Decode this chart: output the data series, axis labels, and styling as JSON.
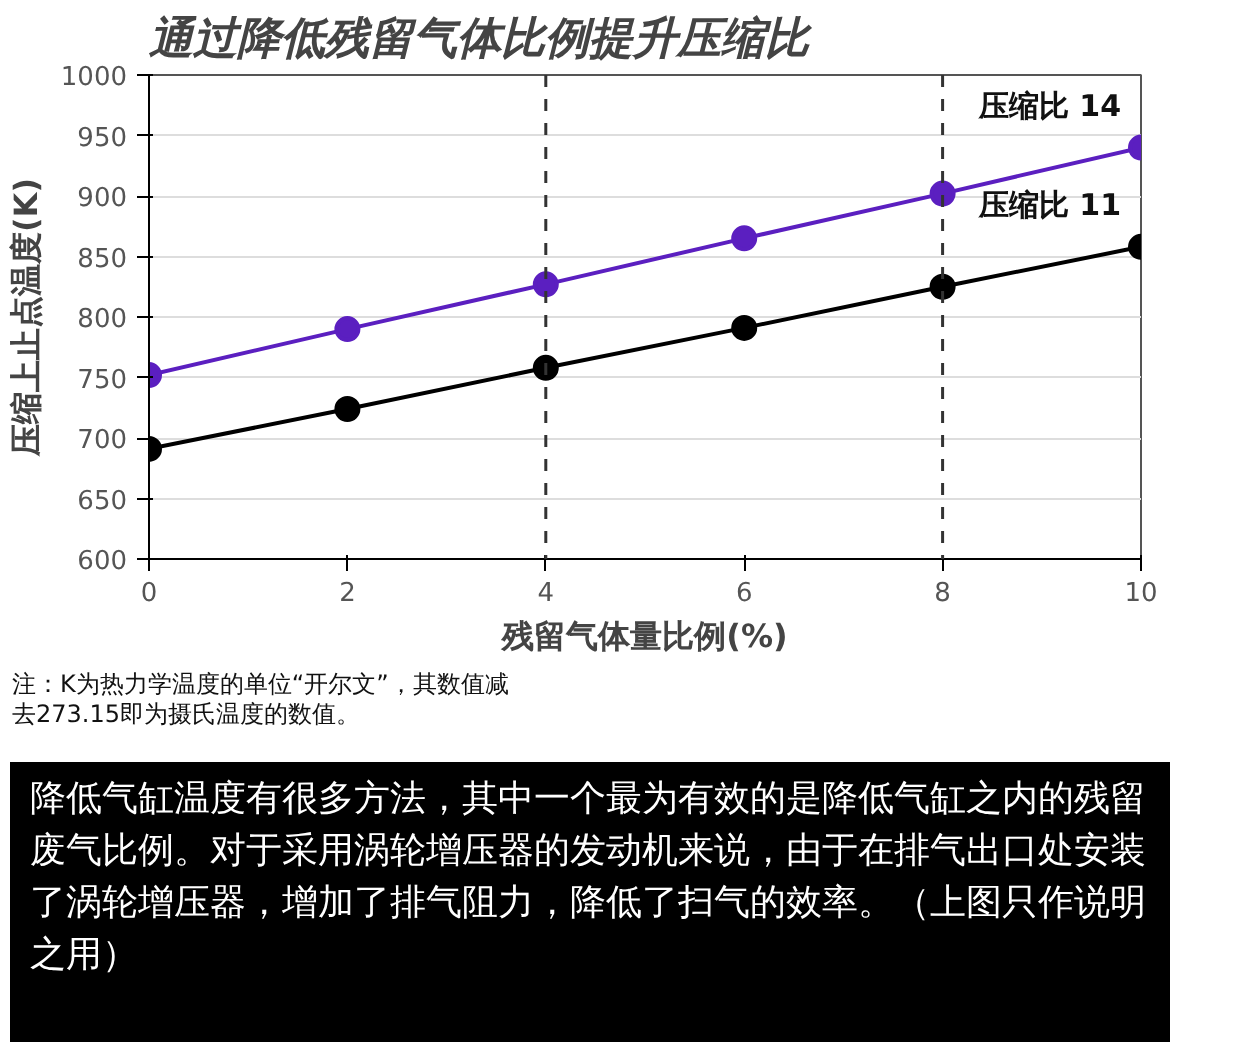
{
  "chart_data": {
    "type": "line",
    "title": "通过降低残留气体比例提升压缩比",
    "xlabel": "残留气体量比例(%)",
    "ylabel": "压缩上止点温度(K)",
    "x": [
      0,
      2,
      4,
      6,
      8,
      10
    ],
    "series": [
      {
        "name": "压缩比 14",
        "color": "#5b1fc0",
        "values": [
          752,
          790,
          827,
          865,
          902,
          940
        ]
      },
      {
        "name": "压缩比 11",
        "color": "#000000",
        "values": [
          691,
          724,
          758,
          791,
          825,
          858
        ]
      }
    ],
    "xlim": [
      0,
      10
    ],
    "xticks": [
      0,
      2,
      4,
      6,
      8,
      10
    ],
    "ylim": [
      600,
      1000
    ],
    "yticks": [
      600,
      650,
      700,
      750,
      800,
      850,
      900,
      950,
      1000
    ],
    "ref_lines": [
      {
        "axis": "x",
        "value": 4,
        "label": null,
        "color": "#333333",
        "line_style": "dashed"
      },
      {
        "axis": "x",
        "value": 8,
        "label": null,
        "color": "#333333",
        "line_style": "dashed"
      }
    ],
    "grid": "y",
    "marker": "circle",
    "line_style": "solid",
    "legend": false,
    "annotations": [
      "注：K为热力学温度的单位“开尔文”，其数值减去273.15即为摄氏温度的数值。",
      "降低气缸温度有很多方法，其中一个最为有效的是降低气缸之内的残留废气比例。对于采用涡轮增压器的发动机来说，由于在排气出口处安装了涡轮增压器，增加了排气阻力，降低了扫气的效率。（上图只作说明之用）"
    ]
  }
}
